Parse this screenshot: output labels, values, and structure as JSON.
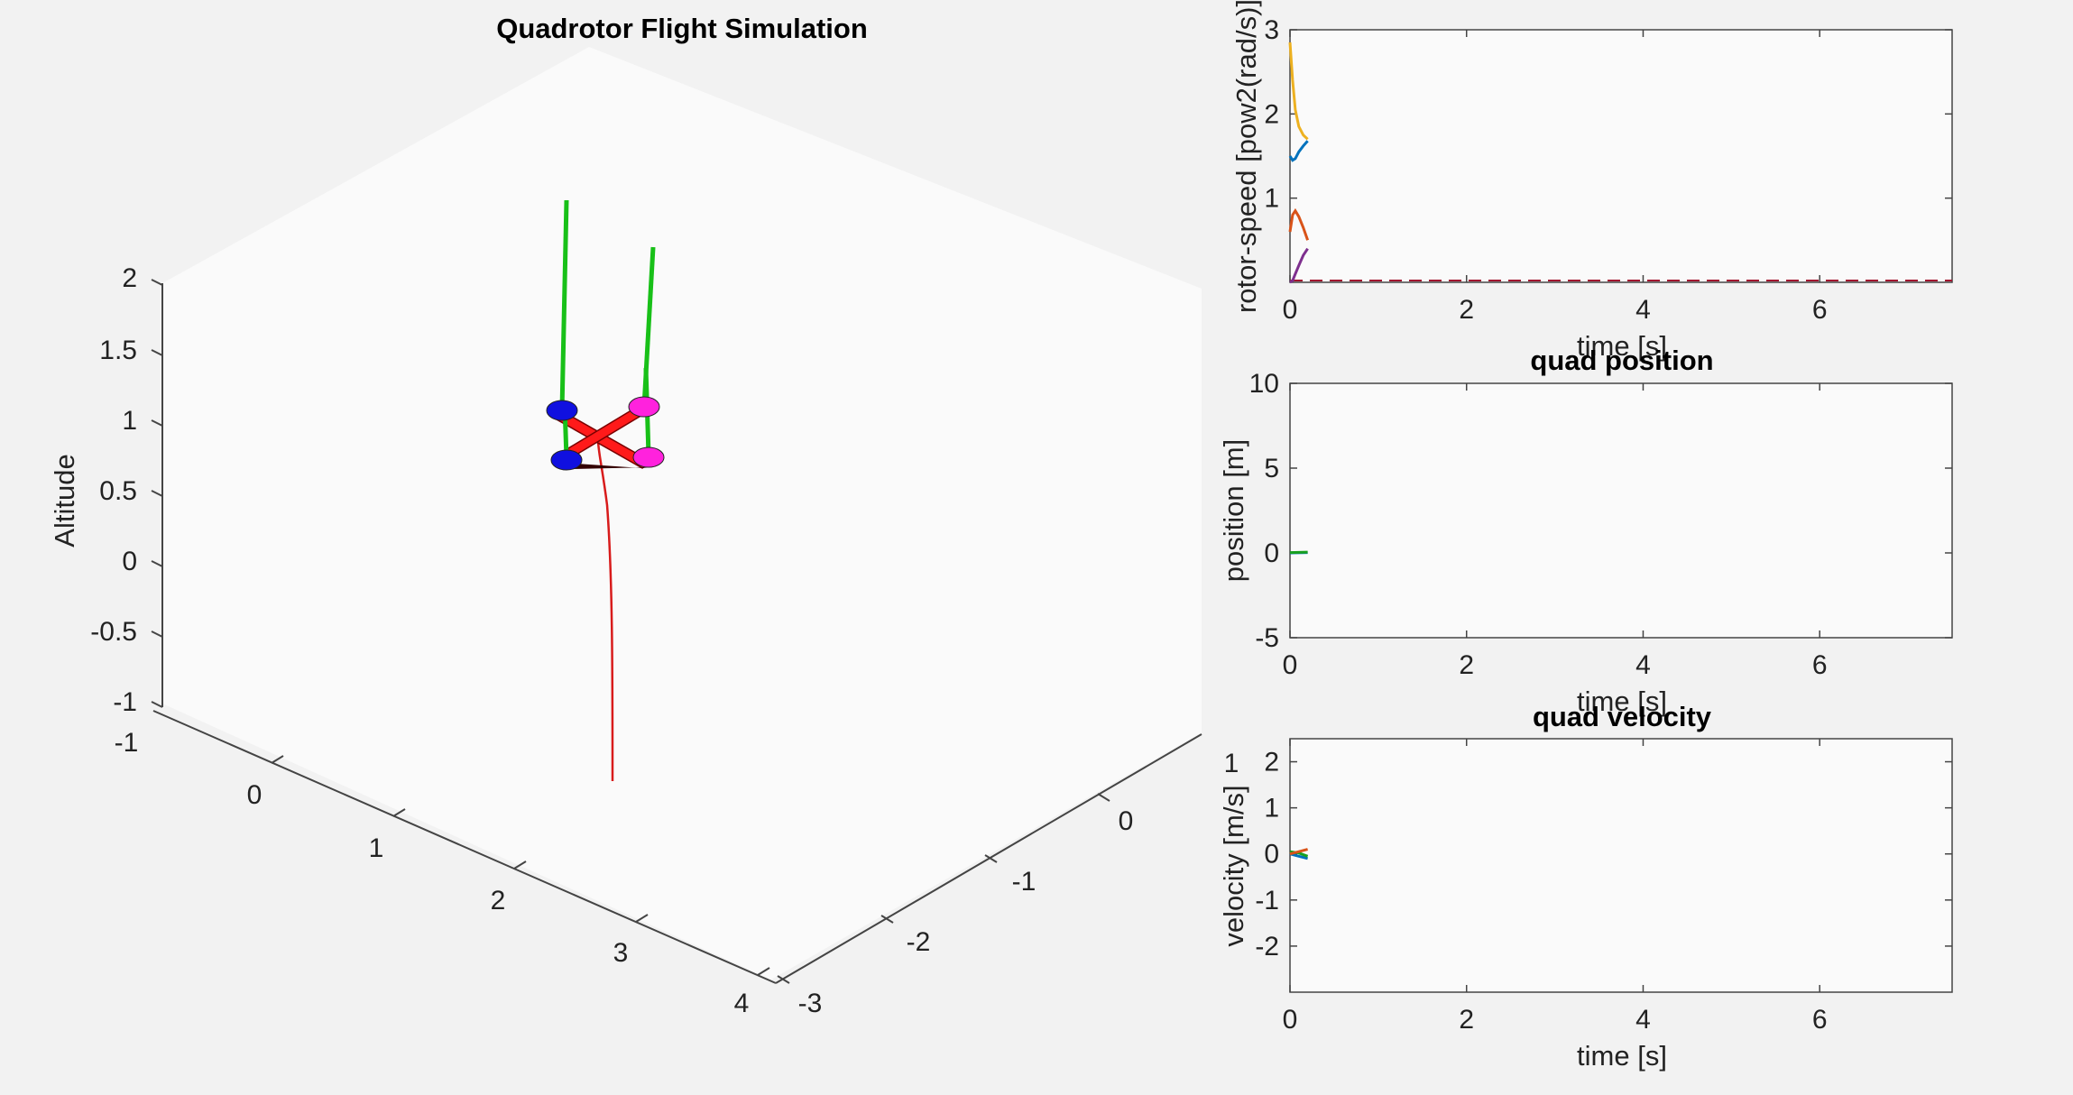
{
  "chart_data": [
    {
      "type": "line3d",
      "title": "Quadrotor Flight Simulation",
      "zlabel": "Altitude",
      "ztick_labels": [
        "2",
        "1.5",
        "1",
        "0.5",
        "0",
        "-0.5",
        "-1"
      ],
      "xtick_labels": [
        "-1",
        "0",
        "1",
        "2",
        "3",
        "4"
      ],
      "ytick_labels": [
        "1",
        "0",
        "-1",
        "-2",
        "-3"
      ],
      "xlim": [
        -1,
        4
      ],
      "ylim": [
        -3,
        1
      ],
      "zlim": [
        -1,
        2
      ],
      "trajectory_color": "#d81b1b",
      "quad_arm_color": "#ff1a1a",
      "rotor_colors": [
        "#1010e0",
        "#ff22dd",
        "#1010e0",
        "#ff22dd"
      ],
      "thrust_color": "#18c018",
      "box_face_color": "#fafafa"
    },
    {
      "type": "line",
      "title": "",
      "xlabel": "time [s]",
      "ylabel": "rotor-speed [pow2(rad/s)]",
      "xlim": [
        0,
        7.5
      ],
      "ylim": [
        0,
        3
      ],
      "xticks": [
        0,
        2,
        4,
        6
      ],
      "yticks": [
        1,
        2,
        3
      ],
      "series": [
        {
          "color": "#edb120",
          "x": [
            0,
            0.03,
            0.06,
            0.1,
            0.15,
            0.2
          ],
          "y": [
            2.85,
            2.4,
            2.05,
            1.85,
            1.75,
            1.7
          ]
        },
        {
          "color": "#0072bd",
          "x": [
            0,
            0.03,
            0.06,
            0.1,
            0.15,
            0.2
          ],
          "y": [
            1.5,
            1.45,
            1.47,
            1.55,
            1.62,
            1.68
          ]
        },
        {
          "color": "#d95319",
          "x": [
            0,
            0.03,
            0.06,
            0.1,
            0.15,
            0.2
          ],
          "y": [
            0.6,
            0.8,
            0.85,
            0.78,
            0.65,
            0.5
          ]
        },
        {
          "color": "#7e2f8e",
          "x": [
            0,
            0.03,
            0.06,
            0.1,
            0.15,
            0.2
          ],
          "y": [
            0,
            0.02,
            0.1,
            0.2,
            0.32,
            0.4
          ]
        }
      ],
      "dashed_line": {
        "color": "#a2142f",
        "y": 0
      }
    },
    {
      "type": "line",
      "title": "quad position",
      "xlabel": "time [s]",
      "ylabel": "position [m]",
      "xlim": [
        0,
        7.5
      ],
      "ylim": [
        -5,
        10
      ],
      "xticks": [
        0,
        2,
        4,
        6
      ],
      "yticks": [
        -5,
        0,
        5,
        10
      ],
      "series": [
        {
          "color": "#0072bd",
          "x": [
            0,
            0.2
          ],
          "y": [
            0,
            0.02
          ]
        },
        {
          "color": "#18a020",
          "x": [
            0,
            0.2
          ],
          "y": [
            0.02,
            0.05
          ]
        }
      ]
    },
    {
      "type": "line",
      "title": "quad velocity",
      "xlabel": "time [s]",
      "ylabel": "velocity [m/s]",
      "xlim": [
        0,
        7.5
      ],
      "ylim": [
        -3,
        2.5
      ],
      "xticks": [
        0,
        2,
        4,
        6
      ],
      "yticks": [
        -2,
        -1,
        0,
        1,
        2
      ],
      "series": [
        {
          "color": "#0072bd",
          "x": [
            0,
            0.1,
            0.2
          ],
          "y": [
            0,
            -0.05,
            -0.1
          ]
        },
        {
          "color": "#18a020",
          "x": [
            0,
            0.1,
            0.2
          ],
          "y": [
            0.05,
            0.02,
            -0.05
          ]
        },
        {
          "color": "#d95319",
          "x": [
            0,
            0.1,
            0.2
          ],
          "y": [
            0,
            0.05,
            0.1
          ]
        }
      ]
    }
  ]
}
